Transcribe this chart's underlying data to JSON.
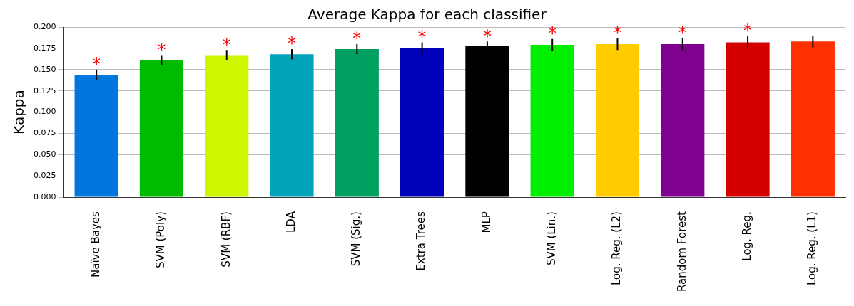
{
  "chart_data": {
    "type": "bar",
    "title": "Average Kappa for each classifier",
    "ylabel": "Kappa",
    "categories": [
      "Naïve Bayes",
      "SVM (Poly)",
      "SVM (RBF)",
      "LDA",
      "SVM (Sig.)",
      "Extra Trees",
      "MLP",
      "SVM (Lin.)",
      "Log. Reg. (L2)",
      "Random Forest",
      "Log. Reg.",
      "Log. Reg. (L1)"
    ],
    "values": [
      0.144,
      0.161,
      0.167,
      0.168,
      0.174,
      0.175,
      0.178,
      0.179,
      0.18,
      0.18,
      0.182,
      0.183
    ],
    "errors": [
      0.006,
      0.006,
      0.006,
      0.006,
      0.006,
      0.007,
      0.005,
      0.007,
      0.007,
      0.007,
      0.007,
      0.007
    ],
    "colors": [
      "#0077dd",
      "#00bb00",
      "#ccf700",
      "#00a5bb",
      "#00a060",
      "#0000bb",
      "#000000",
      "#00ee00",
      "#ffcc00",
      "#800090",
      "#d40000",
      "#ff3000"
    ],
    "ylim": [
      0,
      0.2
    ],
    "yticks": [
      {
        "value": 0,
        "label": "0.000"
      },
      {
        "value": 0.025,
        "label": "0.025"
      },
      {
        "value": 0.05,
        "label": "0.050"
      },
      {
        "value": 0.075,
        "label": "0.075"
      },
      {
        "value": 0.1,
        "label": "0.100"
      },
      {
        "value": 0.125,
        "label": "0.125"
      },
      {
        "value": 0.15,
        "label": "0.150"
      },
      {
        "value": 0.175,
        "label": "0.175"
      },
      {
        "value": 0.2,
        "label": "0.200"
      }
    ],
    "grid": "y",
    "legend": false,
    "annotations": [
      {
        "text": "*",
        "x": "Naïve Bayes",
        "y": 0.144
      },
      {
        "text": "*",
        "x": "SVM (Poly)",
        "y": 0.161
      },
      {
        "text": "*",
        "x": "SVM (RBF)",
        "y": 0.167
      },
      {
        "text": "*",
        "x": "LDA",
        "y": 0.168
      },
      {
        "text": "*",
        "x": "SVM (Sig.)",
        "y": 0.174
      },
      {
        "text": "*",
        "x": "Extra Trees",
        "y": 0.175
      },
      {
        "text": "*",
        "x": "MLP",
        "y": 0.178
      },
      {
        "text": "*",
        "x": "SVM (Lin.)",
        "y": 0.179
      },
      {
        "text": "*",
        "x": "Log. Reg. (L2)",
        "y": 0.18
      },
      {
        "text": "*",
        "x": "Random Forest",
        "y": 0.18
      },
      {
        "text": "*",
        "x": "Log. Reg.",
        "y": 0.182
      }
    ]
  }
}
